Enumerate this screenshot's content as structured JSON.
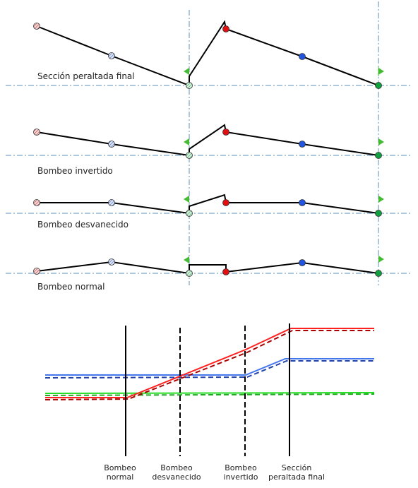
{
  "stages": [
    {
      "label": "Sección peraltada final"
    },
    {
      "label": "Bombeo invertido"
    },
    {
      "label": "Bombeo desvanecido"
    },
    {
      "label": "Bombeo normal"
    }
  ],
  "transition_chart": {
    "markers": [
      {
        "label_line1": "Bombeo",
        "label_line2": "normal",
        "style": "solid"
      },
      {
        "label_line1": "Bombeo",
        "label_line2": "desvanecido",
        "style": "dashed"
      },
      {
        "label_line1": "Bombeo",
        "label_line2": "invertido",
        "style": "dashed"
      },
      {
        "label_line1": "Sección",
        "label_line2": "peraltada final",
        "style": "solid"
      }
    ]
  },
  "colors": {
    "outer_edge": "#e01010",
    "mid_point": "#2255dd",
    "axis_point": "#10a040",
    "flag": "#44bb33",
    "grid": "#5b8fbf",
    "hatch_red": "#c05050",
    "hatch_blue": "#5577bb",
    "hatch_green": "#44aa66"
  },
  "icons": {
    "hatched_point": "hatched-circle-icon",
    "solid_point": "solid-circle-icon",
    "flag": "flag-icon"
  }
}
